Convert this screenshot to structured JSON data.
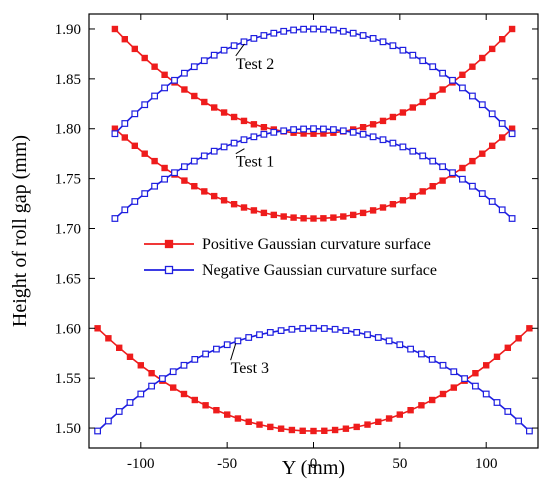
{
  "chart_data": {
    "type": "line",
    "xlabel": "Y (mm)",
    "ylabel": "Height of roll gap (mm)",
    "xlim": [
      -130,
      130
    ],
    "ylim": [
      1.48,
      1.915
    ],
    "xticks": [
      -100,
      -50,
      0,
      50,
      100
    ],
    "yticks": [
      1.5,
      1.55,
      1.6,
      1.65,
      1.7,
      1.75,
      1.8,
      1.85,
      1.9
    ],
    "xtick_labels": [
      "-100",
      "-50",
      "0",
      "50",
      "100"
    ],
    "ytick_labels": [
      "1.50",
      "1.55",
      "1.60",
      "1.65",
      "1.70",
      "1.75",
      "1.80",
      "1.85",
      "1.90"
    ],
    "grid": false,
    "legend_position": "center",
    "series": [
      {
        "name": "Positive Gaussian curvature surface",
        "color": "#ee1c1c",
        "marker": "filled-square",
        "curves": [
          {
            "test": "Test 2",
            "x_range": [
              -115,
              115
            ],
            "y_edge": 1.9,
            "y_center": 1.795
          },
          {
            "test": "Test 1",
            "x_range": [
              -115,
              115
            ],
            "y_edge": 1.8,
            "y_center": 1.71
          },
          {
            "test": "Test 3",
            "x_range": [
              -125,
              125
            ],
            "y_edge": 1.6,
            "y_center": 1.497
          }
        ]
      },
      {
        "name": "Negative Gaussian curvature surface",
        "color": "#1f1fe0",
        "marker": "open-square",
        "curves": [
          {
            "test": "Test 2",
            "x_range": [
              -115,
              115
            ],
            "y_edge": 1.795,
            "y_center": 1.9
          },
          {
            "test": "Test 1",
            "x_range": [
              -115,
              115
            ],
            "y_edge": 1.71,
            "y_center": 1.8
          },
          {
            "test": "Test 3",
            "x_range": [
              -125,
              125
            ],
            "y_edge": 1.497,
            "y_center": 1.6
          }
        ]
      }
    ],
    "annotations": [
      {
        "text": "Test 2",
        "x": -45,
        "y": 1.86,
        "points_to": [
          -40,
          1.885
        ]
      },
      {
        "text": "Test 1",
        "x": -45,
        "y": 1.762,
        "points_to": [
          -40,
          1.78
        ]
      },
      {
        "text": "Test 3",
        "x": -48,
        "y": 1.555,
        "points_to": [
          -45,
          1.585
        ]
      }
    ]
  }
}
